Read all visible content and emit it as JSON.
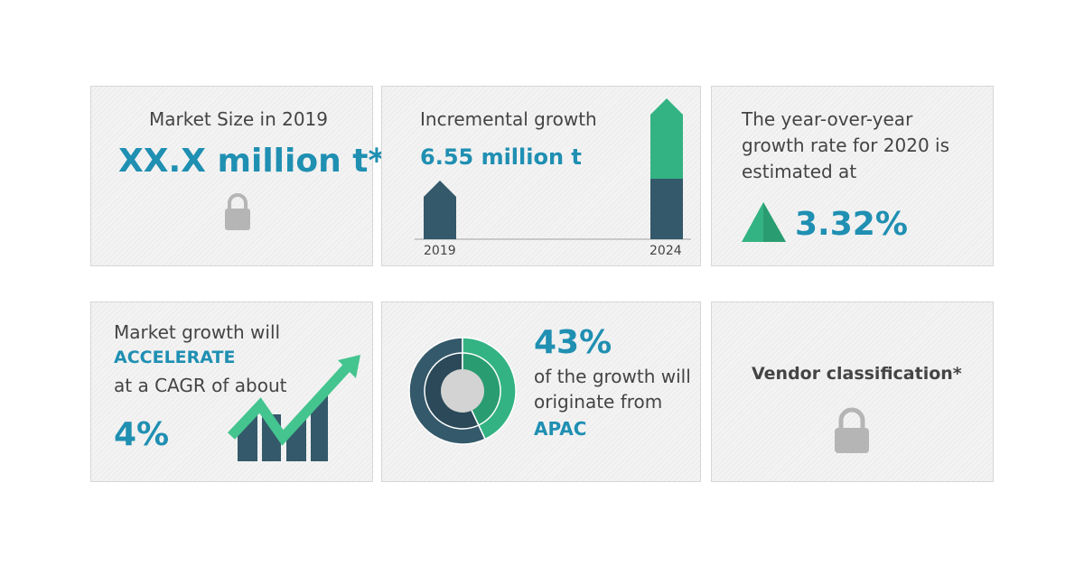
{
  "market_size": {
    "label": "Market Size in 2019",
    "value": "XX.X million t*",
    "icon": "lock-icon"
  },
  "incremental": {
    "label": "Incremental growth",
    "value": "6.55 million t",
    "years": [
      "2019",
      "2024"
    ]
  },
  "yoy": {
    "lines": [
      "The year-over-year",
      "growth rate for 2020 is",
      "estimated at"
    ],
    "value": "3.32%",
    "icon": "triangle-up-icon"
  },
  "cagr": {
    "line1": "Market growth will",
    "emphasis": "ACCELERATE",
    "line2": "at a CAGR of about",
    "value": "4%",
    "icon": "growth-chart-icon"
  },
  "region": {
    "value": "43%",
    "line1": "of the growth will",
    "line2": "originate from",
    "region": "APAC",
    "share": 0.43
  },
  "vendor": {
    "label": "Vendor classification*",
    "icon": "lock-icon"
  },
  "colors": {
    "accent": "#1f8fb2",
    "dark": "#34596a",
    "green": "#33b383",
    "lock": "#b5b5b5"
  }
}
